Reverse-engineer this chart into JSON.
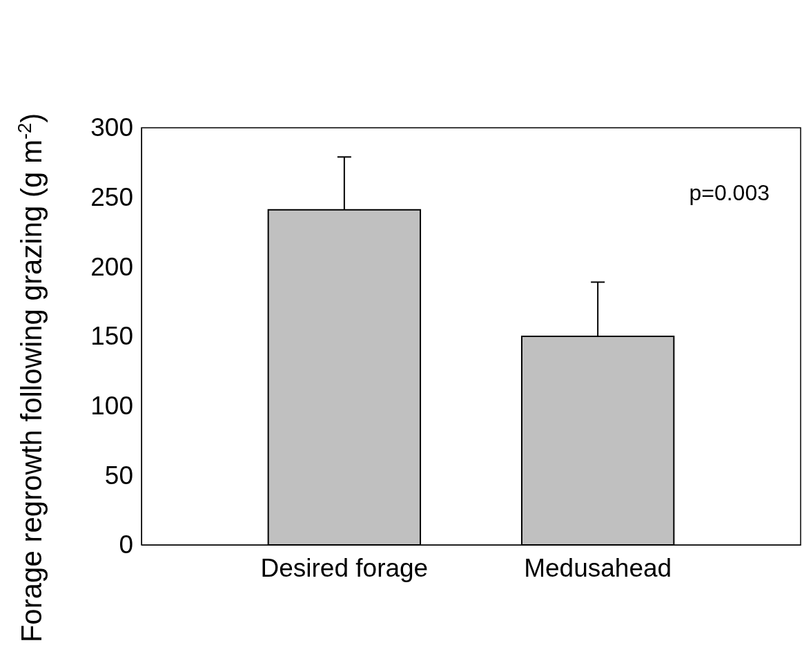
{
  "chart_data": {
    "type": "bar",
    "ylabel": "Forage regrowth following grazing (g m$^{-2}$)",
    "categories": [
      "Desired forage",
      "Medusahead"
    ],
    "values": [
      241,
      150
    ],
    "color": "#c0c0c0",
    "errors": [
      [
        241,
        279
      ],
      [
        150,
        189
      ]
    ],
    "ylim": [
      0,
      300
    ],
    "yticks": [
      0,
      50,
      100,
      150,
      200,
      250,
      300
    ],
    "grid": false,
    "annotations": [
      "p=0.003"
    ]
  }
}
